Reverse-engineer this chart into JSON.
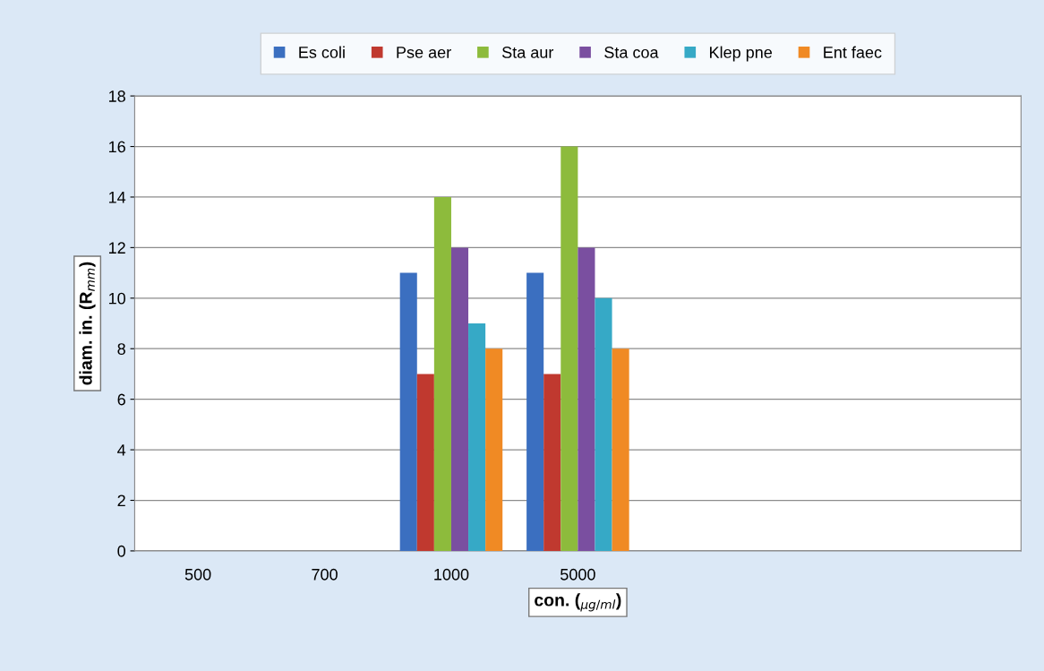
{
  "chart_data": {
    "type": "bar",
    "xlabel": "con. ($_{μg/ml}$)",
    "ylabel": "diam. in. (R$_{mm}$)",
    "categories": [
      "500",
      "700",
      "1000",
      "5000",
      null,
      null,
      null
    ],
    "series": [
      {
        "name": "Es coli",
        "color": "#3b6fc0",
        "values": [
          null,
          null,
          11,
          11,
          null,
          null,
          null
        ]
      },
      {
        "name": "Pse aer",
        "color": "#c0392f",
        "values": [
          null,
          null,
          7,
          7,
          null,
          null,
          null
        ]
      },
      {
        "name": "Sta aur",
        "color": "#8dbb3c",
        "values": [
          null,
          null,
          14,
          16,
          null,
          null,
          null
        ]
      },
      {
        "name": "Sta coa",
        "color": "#7a4fa0",
        "values": [
          null,
          null,
          12,
          12,
          null,
          null,
          null
        ]
      },
      {
        "name": "Klep pne",
        "color": "#36a9c6",
        "values": [
          null,
          null,
          9,
          10,
          null,
          null,
          null
        ]
      },
      {
        "name": "Ent faec",
        "color": "#f08a24",
        "values": [
          null,
          null,
          8,
          8,
          null,
          null,
          null
        ]
      }
    ],
    "ylim": [
      0,
      18
    ],
    "yticks": [
      0,
      2,
      4,
      6,
      8,
      10,
      12,
      14,
      16,
      18
    ],
    "grid": "y",
    "legend": "top"
  }
}
